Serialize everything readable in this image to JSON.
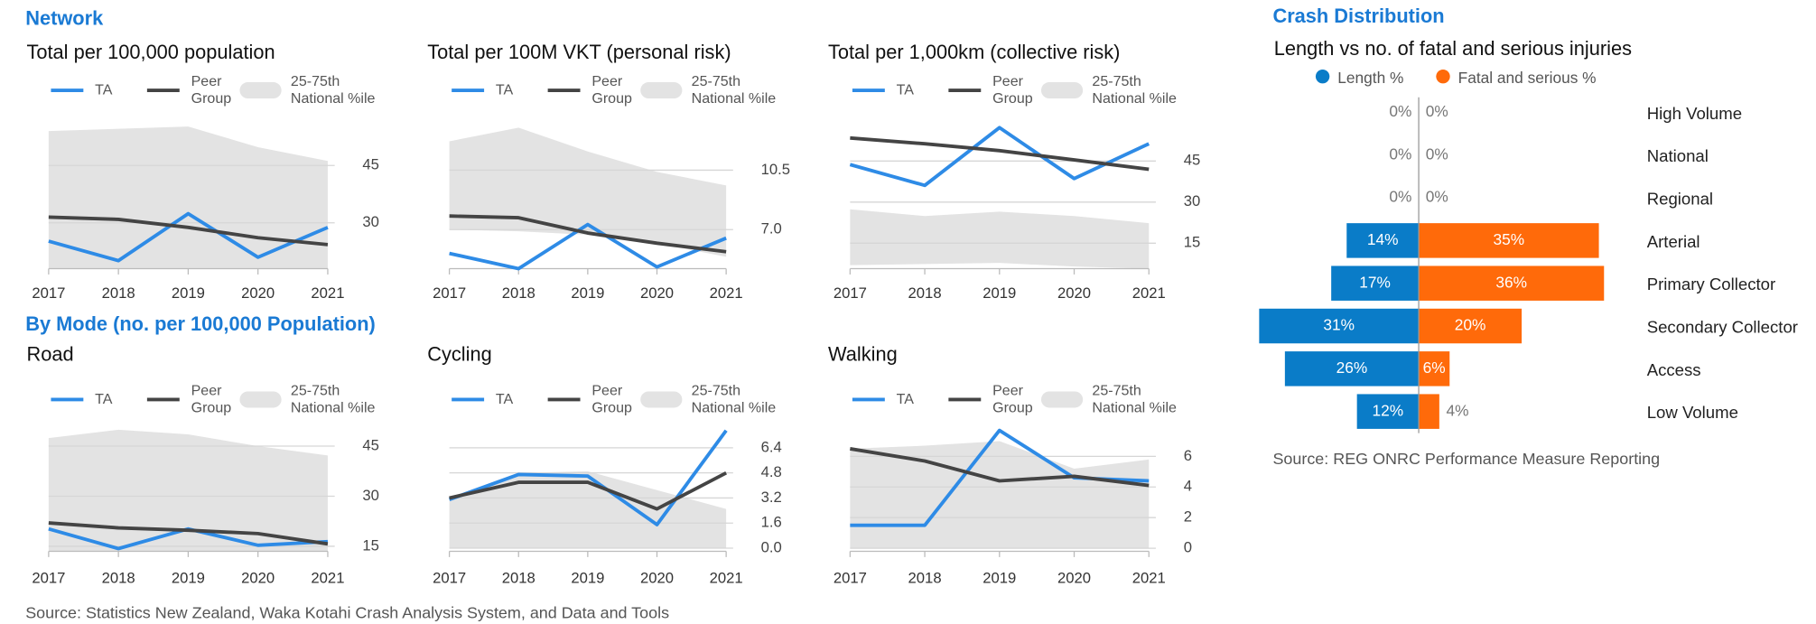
{
  "headings": {
    "network": "Network",
    "by_mode": "By Mode (no. per 100,000 Population)"
  },
  "source": "Source: Statistics New Zealand, Waka Kotahi Crash Analysis System, and Data and Tools",
  "chart_data": [
    {
      "type": "line",
      "title": "Total per 100,000 population",
      "categories": [
        "2017",
        "2018",
        "2019",
        "2020",
        "2021"
      ],
      "series": [
        {
          "name": "TA",
          "color": "#2e8be6",
          "values": [
            25.2,
            20.1,
            32.4,
            21,
            28.8
          ]
        },
        {
          "name": "Peer Group",
          "color": "#444444",
          "values": [
            31.5,
            30.9,
            28.8,
            26.1,
            24.3
          ]
        },
        {
          "name": "25-75th National %ile",
          "color": "#e3e3e3",
          "low": [
            18,
            18,
            18,
            18,
            18
          ],
          "high": [
            54,
            54.6,
            55.2,
            49.8,
            46.2
          ]
        }
      ],
      "ylim": [
        18,
        58
      ],
      "yticks": [
        30,
        45
      ],
      "grid": true
    },
    {
      "type": "line",
      "title": "Total per 100M VKT (personal risk)",
      "categories": [
        "2017",
        "2018",
        "2019",
        "2020",
        "2021"
      ],
      "series": [
        {
          "name": "TA",
          "color": "#2e8be6",
          "values": [
            5.6,
            4.7,
            7.3,
            4.8,
            6.5
          ]
        },
        {
          "name": "Peer Group",
          "color": "#444444",
          "values": [
            7.8,
            7.7,
            6.8,
            6.2,
            5.7
          ]
        },
        {
          "name": "25-75th National %ile",
          "color": "#e3e3e3",
          "low": [
            7,
            6.9,
            6.7,
            6.2,
            5.4
          ],
          "high": [
            12.2,
            13,
            11.6,
            10.4,
            9.6
          ]
        }
      ],
      "ylim": [
        4.7,
        13.7
      ],
      "yticks": [
        {
          "value": 7,
          "label": "7.0"
        },
        10.5
      ],
      "grid": true
    },
    {
      "type": "line",
      "title": "Total per 1,000km (collective risk)",
      "categories": [
        "2017",
        "2018",
        "2019",
        "2020",
        "2021"
      ],
      "series": [
        {
          "name": "TA",
          "color": "#2e8be6",
          "values": [
            43.7,
            36.1,
            57.2,
            38.6,
            51.3
          ]
        },
        {
          "name": "Peer Group",
          "color": "#444444",
          "values": [
            53.4,
            51.3,
            48.8,
            45.4,
            42
          ]
        },
        {
          "name": "25-75th National %ile",
          "color": "#e3e3e3",
          "low": [
            7,
            7.4,
            7.8,
            6.5,
            5.7
          ],
          "high": [
            27.4,
            24.9,
            26.5,
            24.9,
            22.3
          ]
        }
      ],
      "ylim": [
        5.7,
        61.5
      ],
      "yticks": [
        15,
        30,
        45
      ],
      "grid": true
    },
    {
      "type": "line",
      "title": "Road",
      "categories": [
        "2017",
        "2018",
        "2019",
        "2020",
        "2021"
      ],
      "series": [
        {
          "name": "TA",
          "color": "#2e8be6",
          "values": [
            20.2,
            14.3,
            20.2,
            15.3,
            16.4
          ]
        },
        {
          "name": "Peer Group",
          "color": "#444444",
          "values": [
            22,
            20.5,
            19.8,
            18.8,
            15.7
          ]
        },
        {
          "name": "25-75th National %ile",
          "color": "#e3e3e3",
          "low": [
            13.5,
            13.5,
            13.5,
            13.5,
            13.5
          ],
          "high": [
            47.4,
            49.9,
            48.5,
            45,
            42.2
          ]
        }
      ],
      "ylim": [
        13.5,
        52
      ],
      "yticks": [
        15,
        30,
        45
      ],
      "grid": true
    },
    {
      "type": "line",
      "title": "Cycling",
      "categories": [
        "2017",
        "2018",
        "2019",
        "2020",
        "2021"
      ],
      "series": [
        {
          "name": "TA",
          "color": "#2e8be6",
          "values": [
            3.1,
            4.7,
            4.6,
            1.5,
            7.5
          ]
        },
        {
          "name": "Peer Group",
          "color": "#444444",
          "values": [
            3.2,
            4.2,
            4.2,
            2.5,
            4.8
          ]
        },
        {
          "name": "25-75th National %ile",
          "color": "#e3e3e3",
          "low": [
            0,
            0,
            0,
            0,
            0
          ],
          "high": [
            3.2,
            4.8,
            4.9,
            3.7,
            2.5
          ]
        }
      ],
      "ylim": [
        -0.2,
        8
      ],
      "yticks": [
        {
          "value": 0,
          "label": "0.0"
        },
        1.6,
        3.2,
        4.8,
        6.4
      ],
      "grid": true
    },
    {
      "type": "line",
      "title": "Walking",
      "categories": [
        "2017",
        "2018",
        "2019",
        "2020",
        "2021"
      ],
      "series": [
        {
          "name": "TA",
          "color": "#2e8be6",
          "values": [
            1.5,
            1.5,
            7.7,
            4.6,
            4.4
          ]
        },
        {
          "name": "Peer Group",
          "color": "#444444",
          "values": [
            6.5,
            5.7,
            4.4,
            4.7,
            4.1
          ]
        },
        {
          "name": "25-75th National %ile",
          "color": "#e3e3e3",
          "low": [
            0,
            0,
            0,
            0,
            0
          ],
          "high": [
            6.5,
            6.7,
            7,
            5.2,
            5.8
          ]
        }
      ],
      "ylim": [
        -0.2,
        8.2
      ],
      "yticks": [
        0,
        2,
        4,
        6
      ],
      "grid": true
    },
    {
      "type": "butterfly",
      "title": "Crash Distribution",
      "subtitle": "Length vs no. of fatal and serious injuries",
      "categories": [
        "High Volume",
        "National",
        "Regional",
        "Arterial",
        "Primary Collector",
        "Secondary Collector",
        "Access",
        "Low Volume"
      ],
      "series": [
        {
          "name": "Length %",
          "color": "#0a7cc8",
          "values": [
            0,
            0,
            0,
            14,
            17,
            31,
            26,
            12
          ],
          "value_labels": [
            "0%",
            "0%",
            "0%",
            "14%",
            "17%",
            "31%",
            "26%",
            "12%"
          ]
        },
        {
          "name": "Fatal and serious %",
          "color": "#ff6a0a",
          "values": [
            0,
            0,
            0,
            35,
            36,
            20,
            6,
            4
          ],
          "value_labels": [
            "0%",
            "0%",
            "0%",
            "35%",
            "36%",
            "20%",
            "6%",
            "4%"
          ]
        }
      ],
      "source": "Source: REG ONRC Performance Measure Reporting"
    }
  ]
}
